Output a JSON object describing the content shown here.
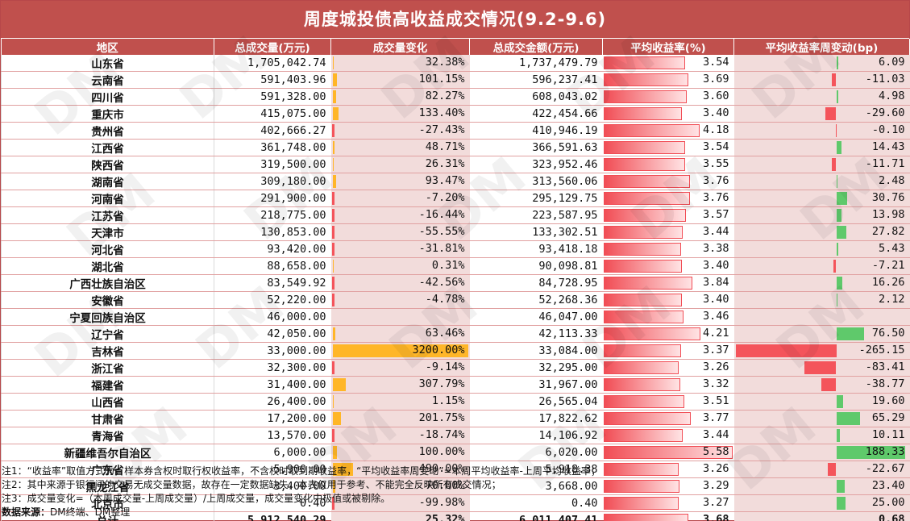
{
  "title": "周度城投债高收益成交情况(9.2-9.6)",
  "headers": [
    "地区",
    "总成交量(万元)",
    "成交量变化",
    "总成交金额(万元)",
    "平均收益率(%)",
    "平均收益率周变动(bp)"
  ],
  "rows": [
    {
      "region": "山东省",
      "volume": "1,705,042.74",
      "vol_change": "32.38%",
      "vol_change_v": 32.38,
      "amount": "1,737,479.79",
      "yield": "3.54",
      "yield_v": 3.54,
      "bp": "6.09",
      "bp_v": 6.09
    },
    {
      "region": "云南省",
      "volume": "591,403.96",
      "vol_change": "101.15%",
      "vol_change_v": 101.15,
      "amount": "596,237.41",
      "yield": "3.69",
      "yield_v": 3.69,
      "bp": "-11.03",
      "bp_v": -11.03
    },
    {
      "region": "四川省",
      "volume": "591,328.00",
      "vol_change": "82.27%",
      "vol_change_v": 82.27,
      "amount": "608,043.02",
      "yield": "3.60",
      "yield_v": 3.6,
      "bp": "4.98",
      "bp_v": 4.98
    },
    {
      "region": "重庆市",
      "volume": "415,075.00",
      "vol_change": "133.40%",
      "vol_change_v": 133.4,
      "amount": "422,454.66",
      "yield": "3.40",
      "yield_v": 3.4,
      "bp": "-29.60",
      "bp_v": -29.6
    },
    {
      "region": "贵州省",
      "volume": "402,666.27",
      "vol_change": "-27.43%",
      "vol_change_v": -27.43,
      "amount": "410,946.19",
      "yield": "4.18",
      "yield_v": 4.18,
      "bp": "-0.10",
      "bp_v": -0.1
    },
    {
      "region": "江西省",
      "volume": "361,748.00",
      "vol_change": "48.71%",
      "vol_change_v": 48.71,
      "amount": "366,591.63",
      "yield": "3.54",
      "yield_v": 3.54,
      "bp": "14.43",
      "bp_v": 14.43
    },
    {
      "region": "陕西省",
      "volume": "319,500.00",
      "vol_change": "26.31%",
      "vol_change_v": 26.31,
      "amount": "323,952.46",
      "yield": "3.55",
      "yield_v": 3.55,
      "bp": "-11.71",
      "bp_v": -11.71
    },
    {
      "region": "湖南省",
      "volume": "309,180.00",
      "vol_change": "93.47%",
      "vol_change_v": 93.47,
      "amount": "313,560.06",
      "yield": "3.76",
      "yield_v": 3.76,
      "bp": "2.48",
      "bp_v": 2.48
    },
    {
      "region": "河南省",
      "volume": "291,900.00",
      "vol_change": "-7.20%",
      "vol_change_v": -7.2,
      "amount": "295,129.75",
      "yield": "3.76",
      "yield_v": 3.76,
      "bp": "30.76",
      "bp_v": 30.76
    },
    {
      "region": "江苏省",
      "volume": "218,775.00",
      "vol_change": "-16.44%",
      "vol_change_v": -16.44,
      "amount": "223,587.95",
      "yield": "3.57",
      "yield_v": 3.57,
      "bp": "13.98",
      "bp_v": 13.98
    },
    {
      "region": "天津市",
      "volume": "130,853.00",
      "vol_change": "-55.55%",
      "vol_change_v": -55.55,
      "amount": "133,302.51",
      "yield": "3.44",
      "yield_v": 3.44,
      "bp": "27.82",
      "bp_v": 27.82
    },
    {
      "region": "河北省",
      "volume": "93,420.00",
      "vol_change": "-31.81%",
      "vol_change_v": -31.81,
      "amount": "93,418.18",
      "yield": "3.38",
      "yield_v": 3.38,
      "bp": "5.43",
      "bp_v": 5.43
    },
    {
      "region": "湖北省",
      "volume": "88,658.00",
      "vol_change": "0.31%",
      "vol_change_v": 0.31,
      "amount": "90,098.81",
      "yield": "3.40",
      "yield_v": 3.4,
      "bp": "-7.21",
      "bp_v": -7.21
    },
    {
      "region": "广西壮族自治区",
      "volume": "83,549.92",
      "vol_change": "-42.56%",
      "vol_change_v": -42.56,
      "amount": "84,728.95",
      "yield": "3.84",
      "yield_v": 3.84,
      "bp": "16.26",
      "bp_v": 16.26
    },
    {
      "region": "安徽省",
      "volume": "52,220.00",
      "vol_change": "-4.78%",
      "vol_change_v": -4.78,
      "amount": "52,268.36",
      "yield": "3.40",
      "yield_v": 3.4,
      "bp": "2.12",
      "bp_v": 2.12
    },
    {
      "region": "宁夏回族自治区",
      "volume": "46,000.00",
      "vol_change": "",
      "vol_change_v": null,
      "amount": "46,047.00",
      "yield": "3.46",
      "yield_v": 3.46,
      "bp": "",
      "bp_v": null
    },
    {
      "region": "辽宁省",
      "volume": "42,050.00",
      "vol_change": "63.46%",
      "vol_change_v": 63.46,
      "amount": "42,113.33",
      "yield": "4.21",
      "yield_v": 4.21,
      "bp": "76.50",
      "bp_v": 76.5
    },
    {
      "region": "吉林省",
      "volume": "33,000.00",
      "vol_change": "3200.00%",
      "vol_change_v": 3200.0,
      "amount": "33,084.00",
      "yield": "3.37",
      "yield_v": 3.37,
      "bp": "-265.15",
      "bp_v": -265.15
    },
    {
      "region": "浙江省",
      "volume": "32,300.00",
      "vol_change": "-9.14%",
      "vol_change_v": -9.14,
      "amount": "32,295.00",
      "yield": "3.26",
      "yield_v": 3.26,
      "bp": "-83.41",
      "bp_v": -83.41
    },
    {
      "region": "福建省",
      "volume": "31,400.00",
      "vol_change": "307.79%",
      "vol_change_v": 307.79,
      "amount": "31,967.00",
      "yield": "3.32",
      "yield_v": 3.32,
      "bp": "-38.77",
      "bp_v": -38.77
    },
    {
      "region": "山西省",
      "volume": "26,400.00",
      "vol_change": "1.15%",
      "vol_change_v": 1.15,
      "amount": "26,565.04",
      "yield": "3.51",
      "yield_v": 3.51,
      "bp": "19.60",
      "bp_v": 19.6
    },
    {
      "region": "甘肃省",
      "volume": "17,200.00",
      "vol_change": "201.75%",
      "vol_change_v": 201.75,
      "amount": "17,822.62",
      "yield": "3.77",
      "yield_v": 3.77,
      "bp": "65.29",
      "bp_v": 65.29
    },
    {
      "region": "青海省",
      "volume": "13,570.00",
      "vol_change": "-18.74%",
      "vol_change_v": -18.74,
      "amount": "14,106.92",
      "yield": "3.44",
      "yield_v": 3.44,
      "bp": "10.11",
      "bp_v": 10.11
    },
    {
      "region": "新疆维吾尔自治区",
      "volume": "6,000.00",
      "vol_change": "100.00%",
      "vol_change_v": 100.0,
      "amount": "6,020.00",
      "yield": "5.58",
      "yield_v": 5.58,
      "bp": "188.33",
      "bp_v": 188.33
    },
    {
      "region": "广东省",
      "volume": "5,900.00",
      "vol_change": "490.00%",
      "vol_change_v": 490.0,
      "amount": "5,918.38",
      "yield": "3.26",
      "yield_v": 3.26,
      "bp": "-22.67",
      "bp_v": -22.67
    },
    {
      "region": "黑龙江省",
      "volume": "3,400.00",
      "vol_change": "70.00%",
      "vol_change_v": 70.0,
      "amount": "3,668.00",
      "yield": "3.29",
      "yield_v": 3.29,
      "bp": "23.40",
      "bp_v": 23.4
    },
    {
      "region": "北京市",
      "volume": "0.40",
      "vol_change": "-99.98%",
      "vol_change_v": -99.98,
      "amount": "0.40",
      "yield": "3.27",
      "yield_v": 3.27,
      "bp": "25.00",
      "bp_v": 25.0
    }
  ],
  "total": {
    "region": "总计",
    "volume": "5,912,540.29",
    "vol_change": "25.32%",
    "amount": "6,011,407.41",
    "yield": "3.68",
    "yield_v": 3.68,
    "bp": "0.68"
  },
  "notes": [
    "注1：“收益率”取值方式为，样本券含权时取行权收益率，不含权时取到期收益率，“平均收益率周变动”=本周平均收益率-上周平均收益率；",
    "注2：其中来源于银行间的交易无成交量数据，故存在一定数据缺失，本表仅用于参考、不能完全反映所有成交情况；",
    "注3：成交量变化=（本周成交量-上周成交量）/上周成交量，成交量变化中极值或被剔除。"
  ],
  "source_label": "数据来源：",
  "source_text": "DM终端、DM整理",
  "watermark": "DM",
  "colors": {
    "header": "#c0504d",
    "pink": "#f2dcdb",
    "bar_orange": "#ffb628",
    "bar_red": "#f4545b",
    "bar_green": "#5fc96b"
  }
}
